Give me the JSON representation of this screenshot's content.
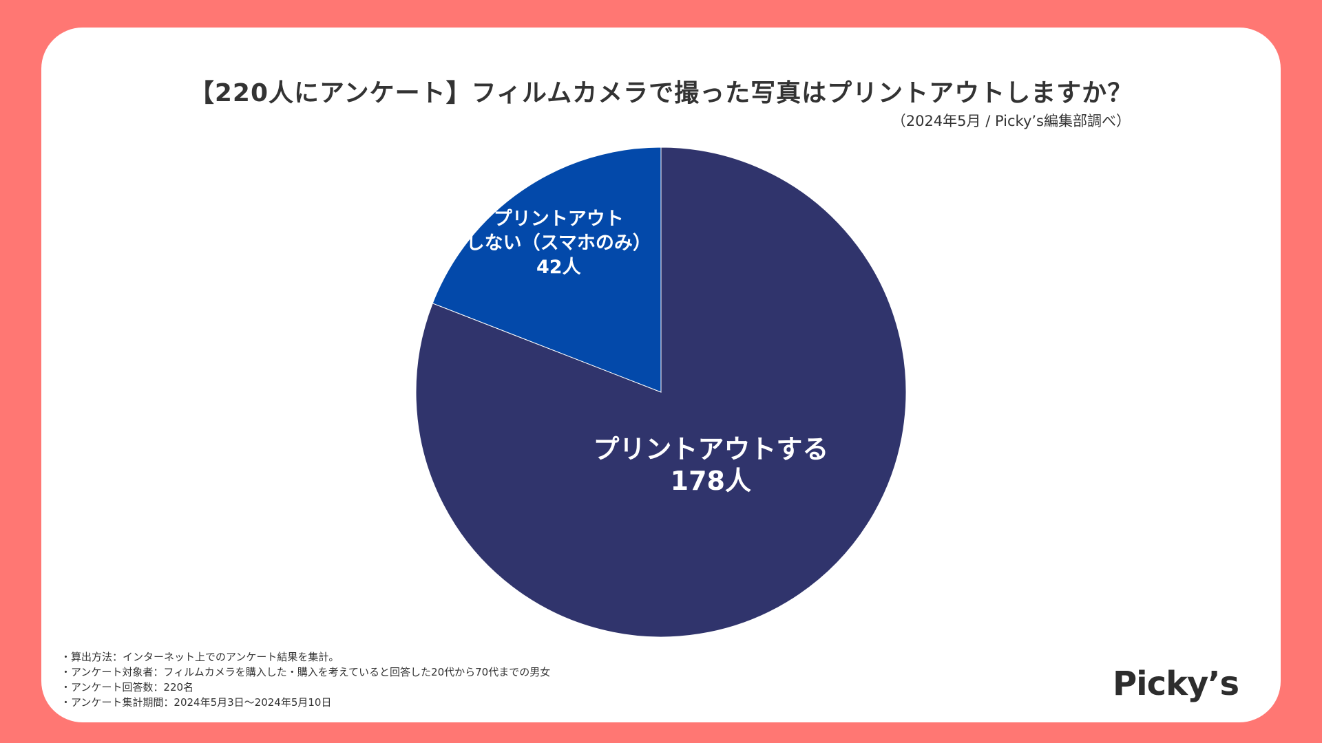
{
  "title": "【220人にアンケート】フィルムカメラで撮った写真はプリントアウトしますか？",
  "source": "（2024年5月 / Picky’s編集部調べ）",
  "notes": [
    "・算出方法：インターネット上でのアンケート結果を集計。",
    "・アンケート対象者：フィルムカメラを購入した・購入を考えていると回答した20代から70代までの男女",
    "・アンケート回答数：220名",
    "・アンケート集計期間：2024年5月3日〜2024年5月10日"
  ],
  "logo": "Picky’s",
  "colors": {
    "background": "#FF7773",
    "card": "#FFFFFF",
    "slice_print": "#30346C",
    "slice_no_print": "#0349AA"
  },
  "chart_data": {
    "type": "pie",
    "title": "【220人にアンケート】フィルムカメラで撮った写真はプリントアウトしますか？",
    "total": 220,
    "slices": [
      {
        "label_lines": [
          "プリントアウトする"
        ],
        "value": 178,
        "value_label": "178人",
        "color": "#30346C"
      },
      {
        "label_lines": [
          "プリントアウト",
          "しない（スマホのみ）"
        ],
        "value": 42,
        "value_label": "42人",
        "color": "#0349AA"
      }
    ]
  }
}
